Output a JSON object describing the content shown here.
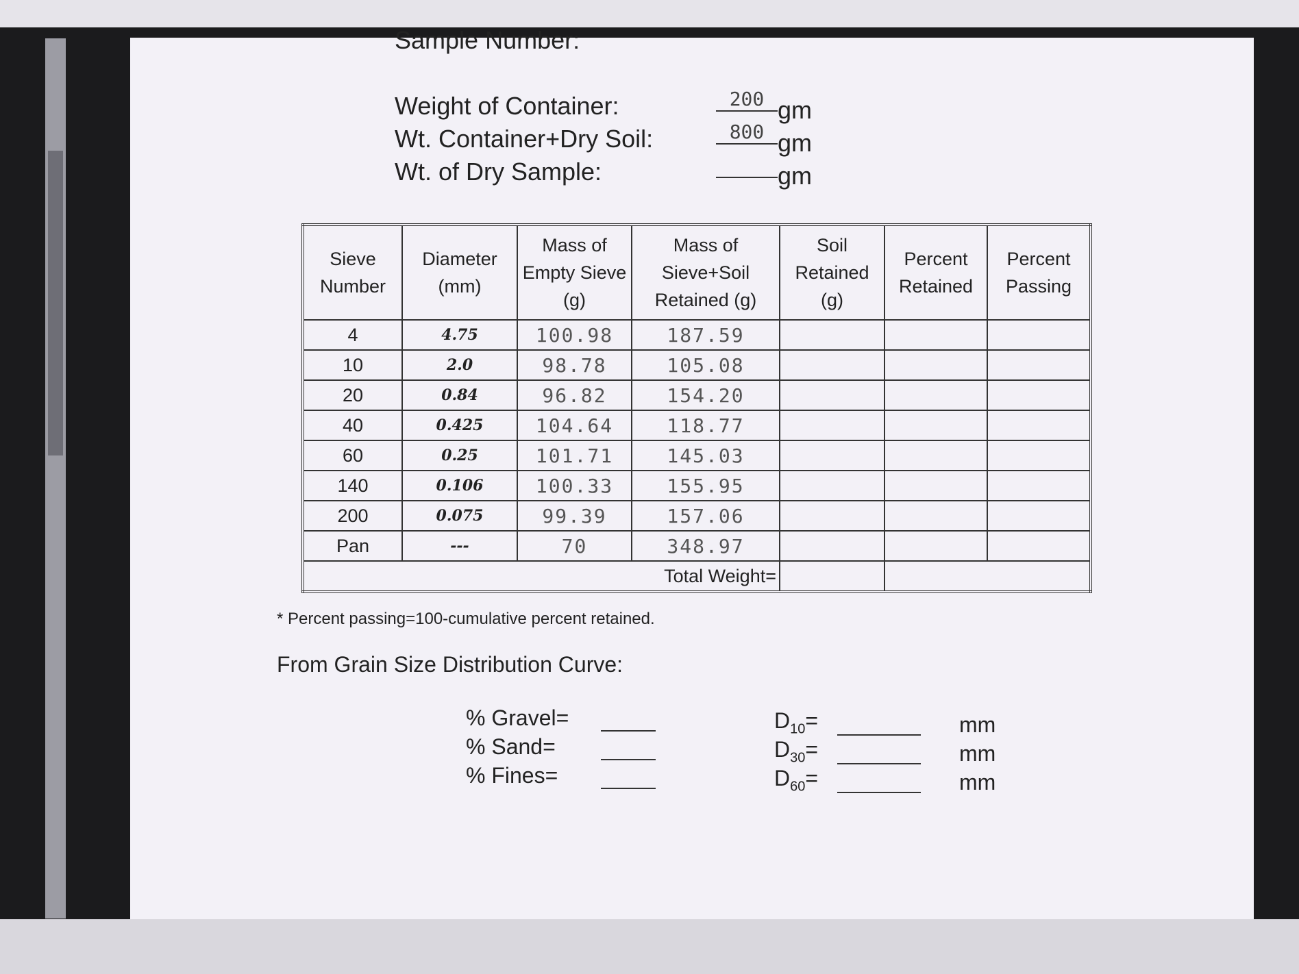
{
  "header": {
    "title": "Sample Number:"
  },
  "weights": [
    {
      "label": "Weight of Container:",
      "value": "200",
      "unit": "gm"
    },
    {
      "label": "Wt. Container+Dry Soil:",
      "value": "800",
      "unit": "gm"
    },
    {
      "label": "Wt. of Dry Sample:",
      "value": null,
      "unit": "gm"
    }
  ],
  "table": {
    "columns": [
      "Sieve Number",
      "Diameter (mm)",
      "Mass of Empty Sieve (g)",
      "Mass of Sieve+Soil Retained (g)",
      "Soil Retained (g)",
      "Percent Retained",
      "Percent Passing"
    ],
    "rows": [
      [
        "4",
        "4.75",
        "100.98",
        "187.59"
      ],
      [
        "10",
        "2.0",
        "98.78",
        "105.08"
      ],
      [
        "20",
        "0.84",
        "96.82",
        "154.20"
      ],
      [
        "40",
        "0.425",
        "104.64",
        "118.77"
      ],
      [
        "60",
        "0.25",
        "101.71",
        "145.03"
      ],
      [
        "140",
        "0.106",
        "100.33",
        "155.95"
      ],
      [
        "200",
        "0.075",
        "99.39",
        "157.06"
      ],
      [
        "Pan",
        "---",
        "70",
        "348.97"
      ]
    ],
    "total_label": "Total Weight="
  },
  "footnote": "* Percent passing=100-cumulative percent retained.",
  "section_title": "From Grain Size Distribution Curve:",
  "percentages": [
    {
      "label": "% Gravel="
    },
    {
      "label": "% Sand="
    },
    {
      "label": "% Fines="
    }
  ],
  "diameters": [
    {
      "symbol": "D",
      "sub": "10",
      "sign": "=",
      "unit": "mm"
    },
    {
      "symbol": "D",
      "sub": "30",
      "sign": "=",
      "unit": "mm"
    },
    {
      "symbol": "D",
      "sub": "60",
      "sign": "=",
      "unit": "mm"
    }
  ]
}
